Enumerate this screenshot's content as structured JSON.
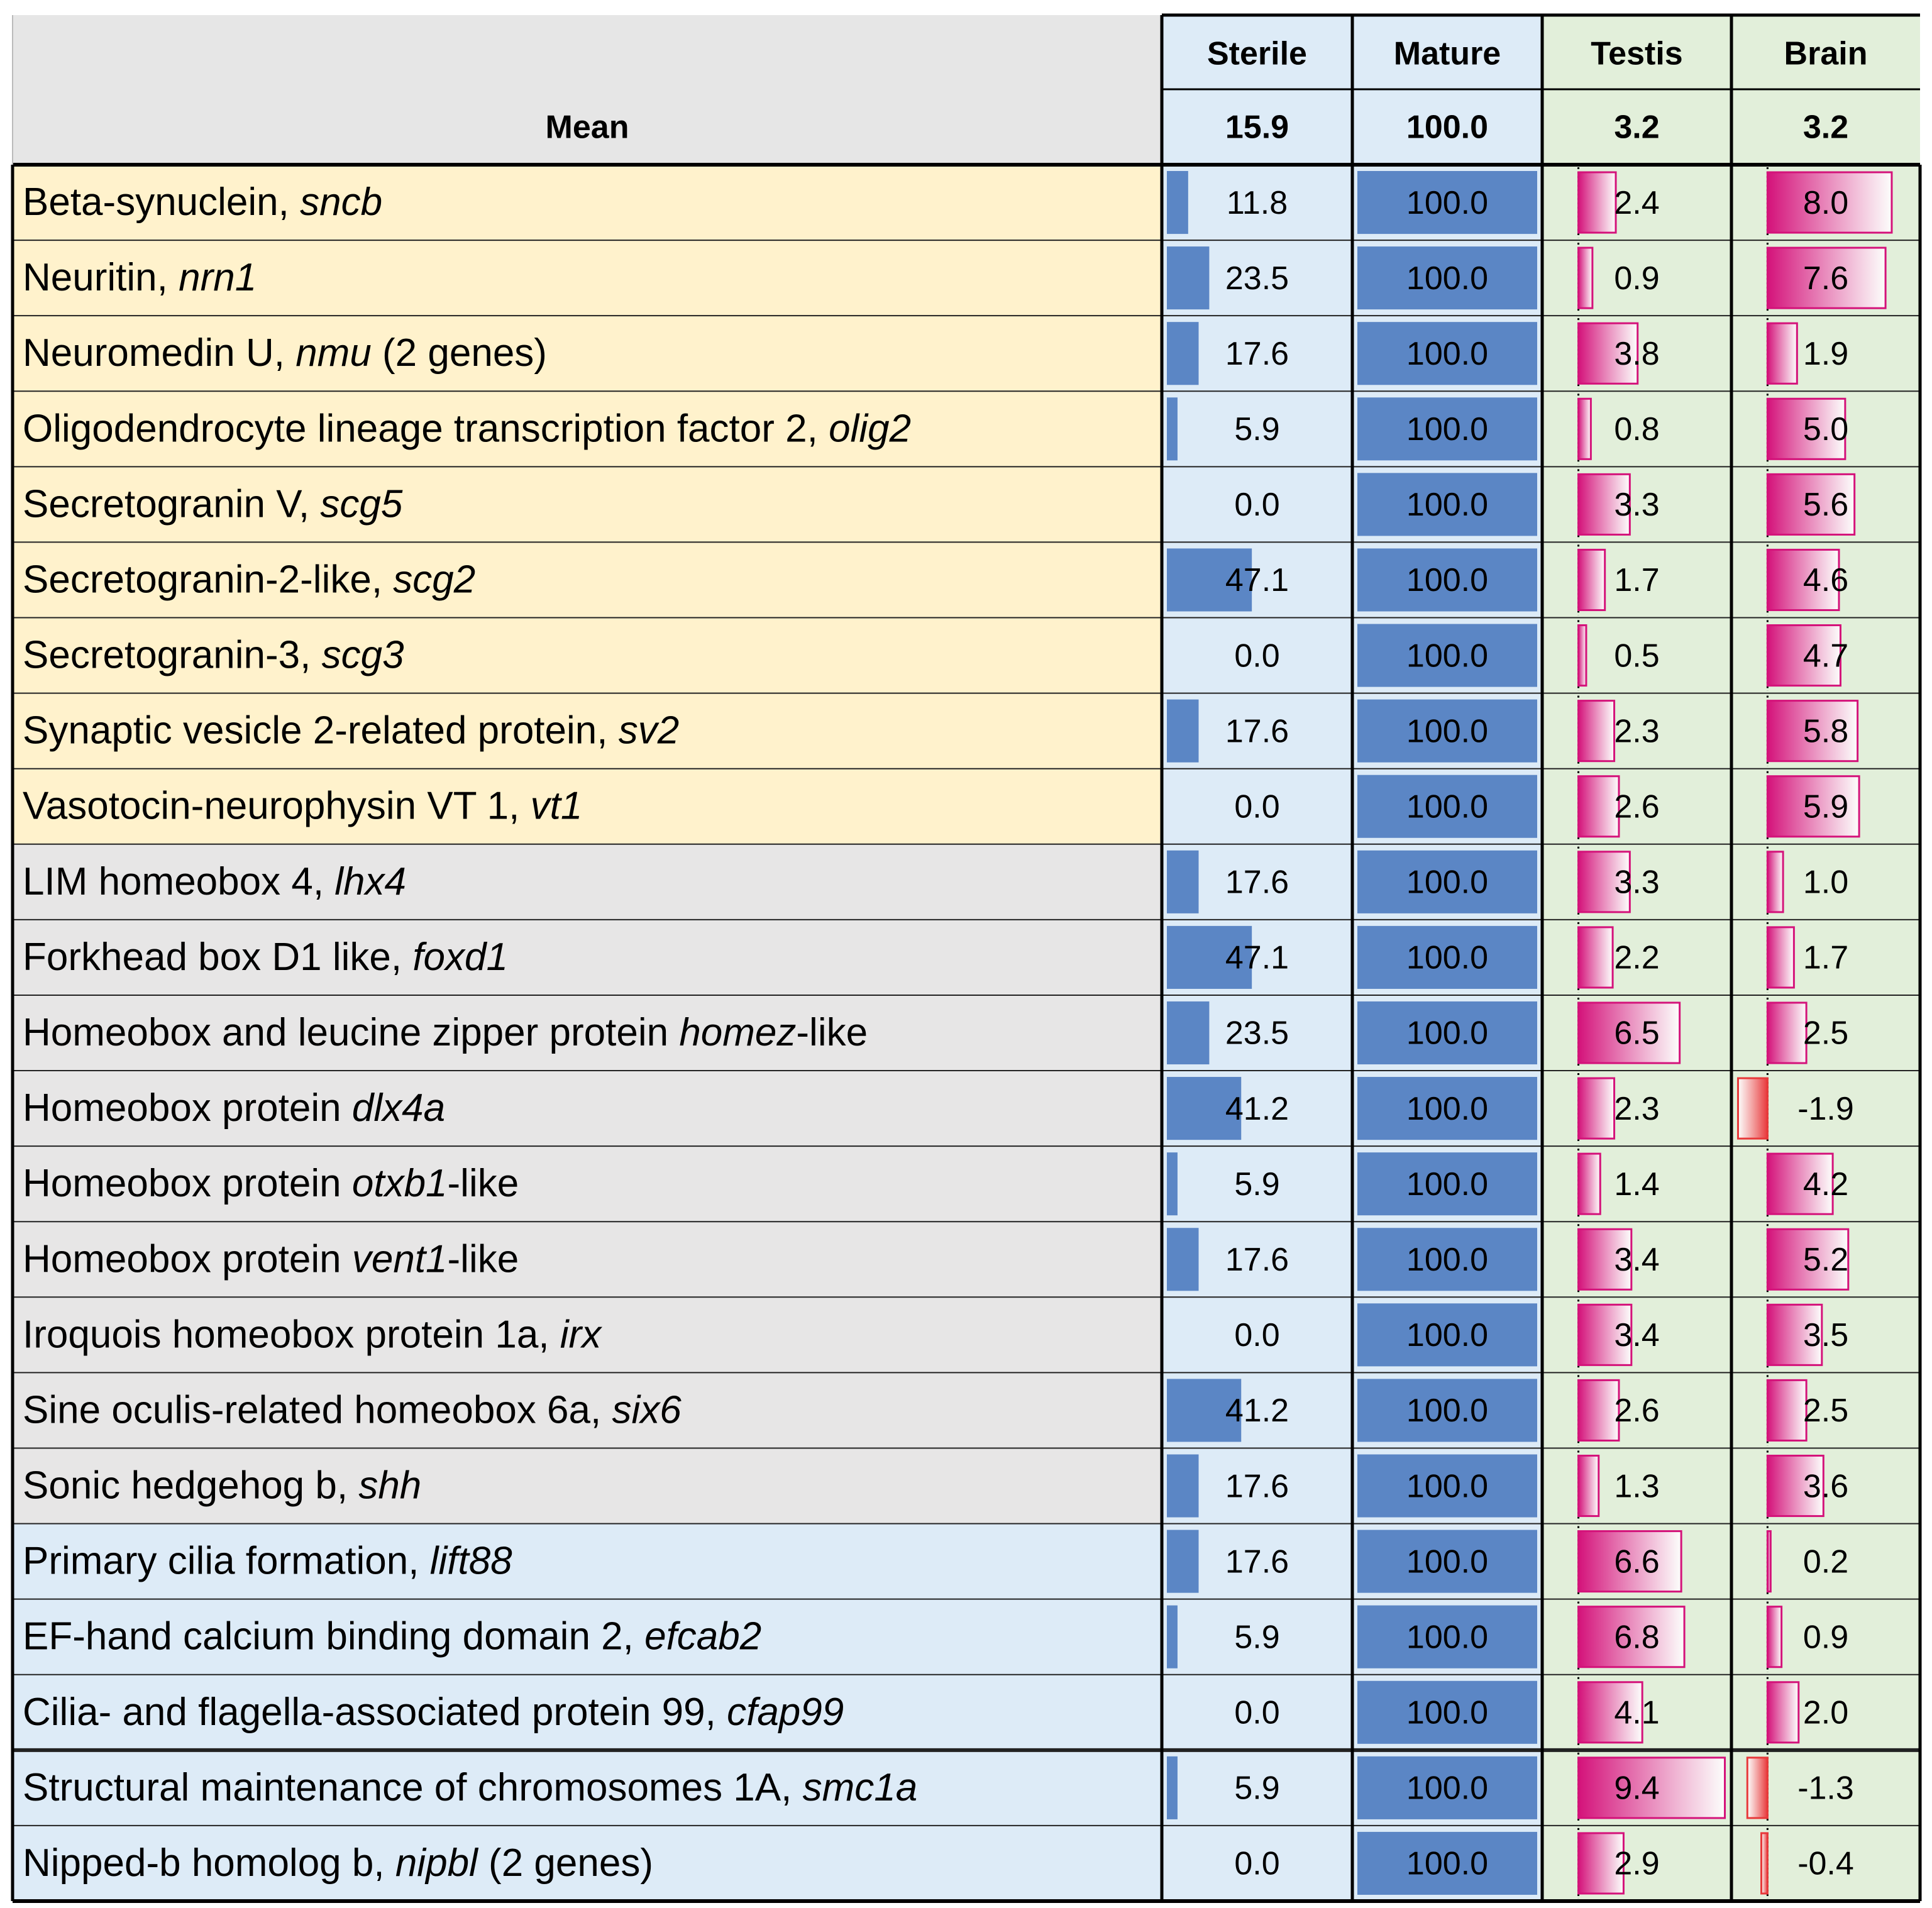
{
  "header": {
    "title": "Mean",
    "background": "#e6e6e6"
  },
  "columns": [
    {
      "name": "Sterile",
      "mean": "15.9",
      "background": "#ddebf7",
      "bar_color": "#5b86c5",
      "bar_style": "solid",
      "scale": [
        0,
        100
      ]
    },
    {
      "name": "Mature",
      "mean": "100.0",
      "background": "#ddebf7",
      "bar_color": "#5b86c5",
      "bar_style": "solid",
      "scale": [
        0,
        100
      ]
    },
    {
      "name": "Testis",
      "mean": "3.2",
      "background": "#e2efda",
      "bar_color": "#d4127a",
      "negative_color": "#e8383a",
      "bar_style": "gradient",
      "scale": [
        -2,
        9.5
      ]
    },
    {
      "name": "Brain",
      "mean": "3.2",
      "background": "#e2efda",
      "bar_color": "#d4127a",
      "negative_color": "#e8383a",
      "bar_style": "gradient",
      "scale": [
        -2,
        9.5
      ]
    }
  ],
  "table": {
    "groups": [
      {
        "background": "#fff2cc",
        "rows": [
          {
            "label": [
              {
                "text": "Beta-synuclein, "
              },
              {
                "text": "sncb",
                "italic": true
              }
            ],
            "values": [
              "11.8",
              "100.0",
              "2.4",
              "8.0"
            ]
          },
          {
            "label": [
              {
                "text": "Neuritin, "
              },
              {
                "text": "nrn1",
                "italic": true
              }
            ],
            "values": [
              "23.5",
              "100.0",
              "0.9",
              "7.6"
            ]
          },
          {
            "label": [
              {
                "text": "Neuromedin U, "
              },
              {
                "text": "nmu",
                "italic": true
              },
              {
                "text": " (2 genes)"
              }
            ],
            "values": [
              "17.6",
              "100.0",
              "3.8",
              "1.9"
            ]
          },
          {
            "label": [
              {
                "text": "Oligodendrocyte lineage transcription factor 2, "
              },
              {
                "text": "olig2",
                "italic": true
              }
            ],
            "values": [
              "5.9",
              "100.0",
              "0.8",
              "5.0"
            ]
          },
          {
            "label": [
              {
                "text": "Secretogranin V, "
              },
              {
                "text": "scg5",
                "italic": true
              }
            ],
            "values": [
              "0.0",
              "100.0",
              "3.3",
              "5.6"
            ]
          },
          {
            "label": [
              {
                "text": "Secretogranin-2-like, "
              },
              {
                "text": "scg2",
                "italic": true
              }
            ],
            "values": [
              "47.1",
              "100.0",
              "1.7",
              "4.6"
            ]
          },
          {
            "label": [
              {
                "text": "Secretogranin-3, "
              },
              {
                "text": "scg3",
                "italic": true
              }
            ],
            "values": [
              "0.0",
              "100.0",
              "0.5",
              "4.7"
            ]
          },
          {
            "label": [
              {
                "text": "Synaptic vesicle 2-related protein, "
              },
              {
                "text": "sv2",
                "italic": true
              }
            ],
            "values": [
              "17.6",
              "100.0",
              "2.3",
              "5.8"
            ]
          },
          {
            "label": [
              {
                "text": "Vasotocin-neurophysin VT 1, "
              },
              {
                "text": "vt1",
                "italic": true
              }
            ],
            "values": [
              "0.0",
              "100.0",
              "2.6",
              "5.9"
            ]
          }
        ]
      },
      {
        "background": "#e7e6e6",
        "rows": [
          {
            "label": [
              {
                "text": "LIM homeobox 4, "
              },
              {
                "text": "lhx4",
                "italic": true
              }
            ],
            "values": [
              "17.6",
              "100.0",
              "3.3",
              "1.0"
            ]
          },
          {
            "label": [
              {
                "text": "Forkhead box D1 like, "
              },
              {
                "text": "foxd1",
                "italic": true
              }
            ],
            "values": [
              "47.1",
              "100.0",
              "2.2",
              "1.7"
            ]
          },
          {
            "label": [
              {
                "text": "Homeobox and leucine zipper protein "
              },
              {
                "text": "homez",
                "italic": true
              },
              {
                "text": "-like"
              }
            ],
            "values": [
              "23.5",
              "100.0",
              "6.5",
              "2.5"
            ]
          },
          {
            "label": [
              {
                "text": "Homeobox protein "
              },
              {
                "text": "dlx4a",
                "italic": true
              }
            ],
            "values": [
              "41.2",
              "100.0",
              "2.3",
              "-1.9"
            ]
          },
          {
            "label": [
              {
                "text": "Homeobox protein "
              },
              {
                "text": "otxb1",
                "italic": true
              },
              {
                "text": "-like"
              }
            ],
            "values": [
              "5.9",
              "100.0",
              "1.4",
              "4.2"
            ]
          },
          {
            "label": [
              {
                "text": "Homeobox protein "
              },
              {
                "text": "vent1",
                "italic": true
              },
              {
                "text": "-like"
              }
            ],
            "values": [
              "17.6",
              "100.0",
              "3.4",
              "5.2"
            ]
          },
          {
            "label": [
              {
                "text": "Iroquois homeobox protein 1a, "
              },
              {
                "text": "irx",
                "italic": true
              }
            ],
            "values": [
              "0.0",
              "100.0",
              "3.4",
              "3.5"
            ]
          },
          {
            "label": [
              {
                "text": "Sine oculis-related homeobox 6a, "
              },
              {
                "text": "six6",
                "italic": true
              }
            ],
            "values": [
              "41.2",
              "100.0",
              "2.6",
              "2.5"
            ]
          },
          {
            "label": [
              {
                "text": "Sonic hedgehog b, "
              },
              {
                "text": "shh",
                "italic": true
              }
            ],
            "values": [
              "17.6",
              "100.0",
              "1.3",
              "3.6"
            ]
          }
        ]
      },
      {
        "background": "#ddebf7",
        "rows": [
          {
            "label": [
              {
                "text": "Primary cilia formation, "
              },
              {
                "text": "lift88",
                "italic": true
              }
            ],
            "values": [
              "17.6",
              "100.0",
              "6.6",
              "0.2"
            ]
          },
          {
            "label": [
              {
                "text": "EF-hand calcium binding domain 2, "
              },
              {
                "text": "efcab2",
                "italic": true
              }
            ],
            "values": [
              "5.9",
              "100.0",
              "6.8",
              "0.9"
            ]
          },
          {
            "label": [
              {
                "text": "Cilia- and flagella-associated protein 99, "
              },
              {
                "text": "cfap99",
                "italic": true
              }
            ],
            "values": [
              "0.0",
              "100.0",
              "4.1",
              "2.0"
            ]
          }
        ]
      },
      {
        "background": "#ddebf7",
        "rows": [
          {
            "label": [
              {
                "text": "Structural maintenance of chromosomes 1A, "
              },
              {
                "text": "smc1a",
                "italic": true
              }
            ],
            "values": [
              "5.9",
              "100.0",
              "9.4",
              "-1.3"
            ]
          },
          {
            "label": [
              {
                "text": "Nipped-b homolog b, "
              },
              {
                "text": "nipbl",
                "italic": true
              },
              {
                "text": " (2 genes)"
              }
            ],
            "values": [
              "0.0",
              "100.0",
              "2.9",
              "-0.4"
            ]
          }
        ]
      }
    ]
  }
}
